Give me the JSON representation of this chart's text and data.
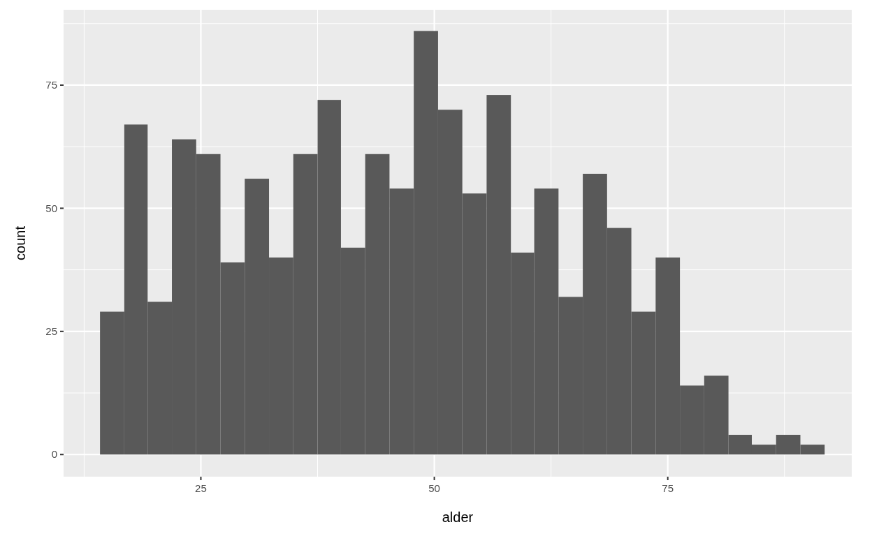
{
  "chart_data": {
    "type": "histogram",
    "xlabel": "alder",
    "ylabel": "count",
    "color": "#595959",
    "bins": [
      14.2,
      16.8,
      19.3,
      21.9,
      24.5,
      27.1,
      29.7,
      32.3,
      34.9,
      37.5,
      40.0,
      42.6,
      45.2,
      47.8,
      50.4,
      53.0,
      55.6,
      58.2,
      60.7,
      63.3,
      65.9,
      68.5,
      71.1,
      73.7,
      76.3,
      78.9,
      81.5,
      84.0,
      86.6,
      89.2,
      91.8
    ],
    "values": [
      29,
      67,
      31,
      64,
      61,
      39,
      56,
      40,
      61,
      72,
      42,
      61,
      54,
      86,
      70,
      53,
      73,
      41,
      54,
      32,
      57,
      46,
      29,
      40,
      14,
      16,
      4,
      2,
      4,
      2
    ],
    "xlim": [
      10.3,
      94.7
    ],
    "xticks": [
      25,
      50,
      75
    ],
    "ylim": [
      -4.5,
      90.3
    ],
    "yticks": [
      0,
      25,
      50,
      75
    ],
    "grid": true
  }
}
